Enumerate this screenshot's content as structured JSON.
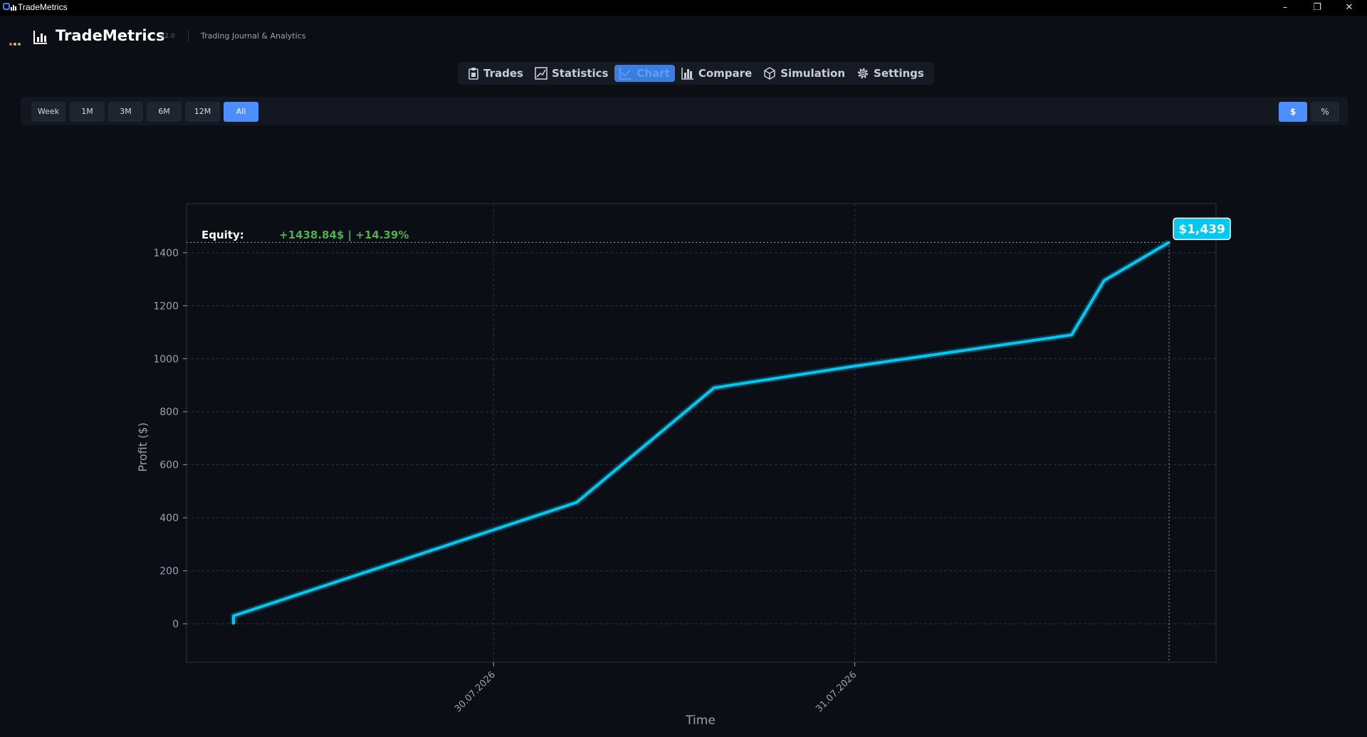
{
  "window": {
    "title": "TradeMetrics",
    "minimize": "–",
    "maximize": "❐",
    "close": "✕"
  },
  "header": {
    "app_name": "TradeMetrics",
    "version": "v2.0",
    "subtitle": "Trading Journal & Analytics",
    "dot_colors": [
      "#e06c75",
      "#e5c07b",
      "#98c379"
    ]
  },
  "tabs": [
    {
      "label": "Trades",
      "icon": "clipboard-icon",
      "active": false
    },
    {
      "label": "Statistics",
      "icon": "chart-trend-icon",
      "active": false
    },
    {
      "label": "Chart",
      "icon": "line-chart-icon",
      "active": true
    },
    {
      "label": "Compare",
      "icon": "bar-chart-icon",
      "active": false
    },
    {
      "label": "Simulation",
      "icon": "cube-icon",
      "active": false
    },
    {
      "label": "Settings",
      "icon": "gear-icon",
      "active": false
    }
  ],
  "periods": [
    {
      "label": "Week",
      "active": false
    },
    {
      "label": "1M",
      "active": false
    },
    {
      "label": "3M",
      "active": false
    },
    {
      "label": "6M",
      "active": false
    },
    {
      "label": "12M",
      "active": false
    },
    {
      "label": "All",
      "active": true
    }
  ],
  "units": [
    {
      "label": "$",
      "active": true
    },
    {
      "label": "%",
      "active": false
    }
  ],
  "colors": {
    "accent": "#4c8dff",
    "line": "#00c8f0",
    "positive": "#4caf50"
  },
  "chart_data": {
    "type": "line",
    "xlabel": "Time",
    "ylabel": "Profit ($)",
    "ylim": [
      -145,
      1585
    ],
    "xlim": [
      -0.85,
      2.0
    ],
    "y_ticks": [
      0,
      200,
      400,
      600,
      800,
      1000,
      1200,
      1400
    ],
    "x_ticks": [
      {
        "value": 0,
        "label": "30.07.2026"
      },
      {
        "value": 1,
        "label": "31.07.2026"
      }
    ],
    "grid": true,
    "equity_label": "Equity:",
    "equity_value": "+1438.84$ | +14.39%",
    "last_value_label": "$1,439",
    "last_value": 1438.84,
    "points": [
      {
        "x": -0.72,
        "y": 0
      },
      {
        "x": -0.72,
        "y": 30
      },
      {
        "x": 0.23,
        "y": 458
      },
      {
        "x": 0.61,
        "y": 890
      },
      {
        "x": 0.99,
        "y": 970
      },
      {
        "x": 1.6,
        "y": 1090
      },
      {
        "x": 1.69,
        "y": 1295
      },
      {
        "x": 1.87,
        "y": 1439
      }
    ]
  }
}
